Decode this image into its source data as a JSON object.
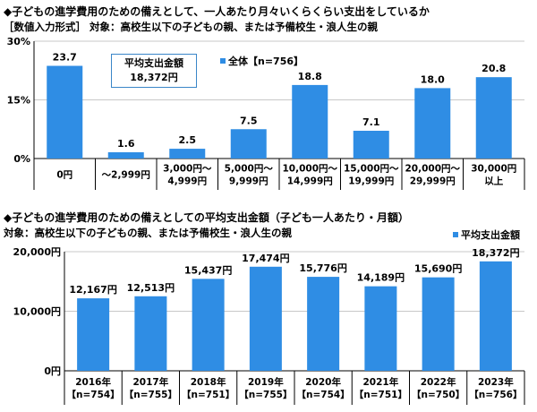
{
  "colors": {
    "bar": "#2f8de4",
    "grid": "#c8c8c8",
    "axis": "#000000",
    "border": "#3a86c8"
  },
  "chart1": {
    "title": "◆子どもの進学費用のための備えとして、一人あたり月々いくらくらい支出をしているか",
    "subtitle": "［数値入力形式］ 対象：高校生以下の子どもの親、または予備校生・浪人生の親",
    "legend": "全体【n=756】",
    "avg_box_line1": "平均支出金額",
    "avg_box_line2": "18,372円",
    "y_ticks": [
      "30%",
      "15%",
      "0%"
    ]
  },
  "chart2": {
    "title": "◆子どもの進学費用のための備えとしての平均支出金額（子ども一人あたり・月額）",
    "subtitle": "対象：高校生以下の子どもの親、または予備校生・浪人生の親",
    "legend": "平均支出金額",
    "y_ticks": [
      "20,000円",
      "10,000円",
      "0円"
    ]
  },
  "chart_data": [
    {
      "type": "bar",
      "categories": [
        [
          "0円"
        ],
        [
          "～2,999円"
        ],
        [
          "3,000円～",
          "4,999円"
        ],
        [
          "5,000円～",
          "9,999円"
        ],
        [
          "10,000円～",
          "14,999円"
        ],
        [
          "15,000円～",
          "19,999円"
        ],
        [
          "20,000円～",
          "29,999円"
        ],
        [
          "30,000円",
          "以上"
        ]
      ],
      "series": [
        {
          "name": "全体【n=756】",
          "values": [
            23.7,
            1.6,
            2.5,
            7.5,
            18.8,
            7.1,
            18.0,
            20.8
          ]
        }
      ],
      "labels": [
        "23.7",
        "1.6",
        "2.5",
        "7.5",
        "18.8",
        "7.1",
        "18.0",
        "20.8"
      ],
      "ylim": [
        0,
        30
      ],
      "unit": "%",
      "legend_position": "top"
    },
    {
      "type": "bar",
      "categories": [
        [
          "2016年",
          "【n=754】"
        ],
        [
          "2017年",
          "【n=755】"
        ],
        [
          "2018年",
          "【n=751】"
        ],
        [
          "2019年",
          "【n=755】"
        ],
        [
          "2020年",
          "【n=754】"
        ],
        [
          "2021年",
          "【n=751】"
        ],
        [
          "2022年",
          "【n=750】"
        ],
        [
          "2023年",
          "【n=756】"
        ]
      ],
      "series": [
        {
          "name": "平均支出金額",
          "values": [
            12167,
            12513,
            15437,
            17474,
            15776,
            14189,
            15690,
            18372
          ]
        }
      ],
      "labels": [
        "12,167円",
        "12,513円",
        "15,437円",
        "17,474円",
        "15,776円",
        "14,189円",
        "15,690円",
        "18,372円"
      ],
      "ylim": [
        0,
        20000
      ],
      "unit": "円",
      "legend_position": "top-right"
    }
  ]
}
